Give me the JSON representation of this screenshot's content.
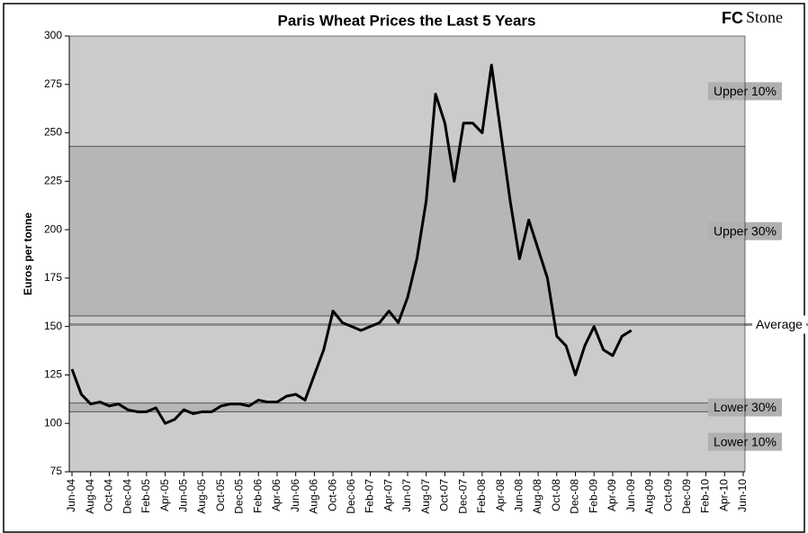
{
  "chart_data": {
    "type": "line",
    "title": "Paris Wheat Prices the Last 5 Years",
    "logo": {
      "bold": "FC",
      "text": "Stone"
    },
    "y_label": "Euros per tonne",
    "ylim": [
      75,
      300
    ],
    "yticks": [
      75,
      100,
      125,
      150,
      175,
      200,
      225,
      250,
      275,
      300
    ],
    "xlim": [
      "2004-06",
      "2010-06"
    ],
    "xticks": [
      {
        "value": "2004-06",
        "label": "Jun-04"
      },
      {
        "value": "2004-08",
        "label": "Aug-04"
      },
      {
        "value": "2004-10",
        "label": "Oct-04"
      },
      {
        "value": "2004-12",
        "label": "Dec-04"
      },
      {
        "value": "2005-02",
        "label": "Feb-05"
      },
      {
        "value": "2005-04",
        "label": "Apr-05"
      },
      {
        "value": "2005-06",
        "label": "Jun-05"
      },
      {
        "value": "2005-08",
        "label": "Aug-05"
      },
      {
        "value": "2005-10",
        "label": "Oct-05"
      },
      {
        "value": "2005-12",
        "label": "Dec-05"
      },
      {
        "value": "2006-02",
        "label": "Feb-06"
      },
      {
        "value": "2006-04",
        "label": "Apr-06"
      },
      {
        "value": "2006-06",
        "label": "Jun-06"
      },
      {
        "value": "2006-08",
        "label": "Aug-06"
      },
      {
        "value": "2006-10",
        "label": "Oct-06"
      },
      {
        "value": "2006-12",
        "label": "Dec-06"
      },
      {
        "value": "2007-02",
        "label": "Feb-07"
      },
      {
        "value": "2007-04",
        "label": "Apr-07"
      },
      {
        "value": "2007-06",
        "label": "Jun-07"
      },
      {
        "value": "2007-08",
        "label": "Aug-07"
      },
      {
        "value": "2007-10",
        "label": "Oct-07"
      },
      {
        "value": "2007-12",
        "label": "Dec-07"
      },
      {
        "value": "2008-02",
        "label": "Feb-08"
      },
      {
        "value": "2008-04",
        "label": "Apr-08"
      },
      {
        "value": "2008-06",
        "label": "Jun-08"
      },
      {
        "value": "2008-08",
        "label": "Aug-08"
      },
      {
        "value": "2008-10",
        "label": "Oct-08"
      },
      {
        "value": "2008-12",
        "label": "Dec-08"
      },
      {
        "value": "2009-02",
        "label": "Feb-09"
      },
      {
        "value": "2009-04",
        "label": "Apr-09"
      },
      {
        "value": "2009-06",
        "label": "Jun-09"
      },
      {
        "value": "2009-08",
        "label": "Aug-09"
      },
      {
        "value": "2009-10",
        "label": "Oct-09"
      },
      {
        "value": "2009-12",
        "label": "Dec-09"
      },
      {
        "value": "2010-02",
        "label": "Feb-10"
      },
      {
        "value": "2010-04",
        "label": "Apr-10"
      },
      {
        "value": "2010-06",
        "label": "Jun-10"
      }
    ],
    "x": [
      "2004-06",
      "2004-07",
      "2004-08",
      "2004-09",
      "2004-10",
      "2004-11",
      "2004-12",
      "2005-01",
      "2005-02",
      "2005-03",
      "2005-04",
      "2005-05",
      "2005-06",
      "2005-07",
      "2005-08",
      "2005-09",
      "2005-10",
      "2005-11",
      "2005-12",
      "2006-01",
      "2006-02",
      "2006-03",
      "2006-04",
      "2006-05",
      "2006-06",
      "2006-07",
      "2006-08",
      "2006-09",
      "2006-10",
      "2006-11",
      "2006-12",
      "2007-01",
      "2007-02",
      "2007-03",
      "2007-04",
      "2007-05",
      "2007-06",
      "2007-07",
      "2007-08",
      "2007-09",
      "2007-10",
      "2007-11",
      "2007-12",
      "2008-01",
      "2008-02",
      "2008-03",
      "2008-04",
      "2008-05",
      "2008-06",
      "2008-07",
      "2008-08",
      "2008-09",
      "2008-10",
      "2008-11",
      "2008-12",
      "2009-01",
      "2009-02",
      "2009-03",
      "2009-04",
      "2009-05",
      "2009-06"
    ],
    "series": [
      {
        "name": "Paris Wheat",
        "color": "#000000",
        "values": [
          128,
          115,
          110,
          111,
          109,
          110,
          107,
          106,
          106,
          108,
          100,
          102,
          107,
          105,
          106,
          106,
          109,
          110,
          110,
          109,
          112,
          111,
          111,
          114,
          115,
          112,
          125,
          138,
          158,
          152,
          150,
          148,
          150,
          152,
          158,
          152,
          165,
          185,
          215,
          270,
          255,
          225,
          255,
          255,
          250,
          285,
          250,
          215,
          185,
          205,
          190,
          175,
          145,
          140,
          125,
          140,
          150,
          138,
          135,
          145,
          148
        ]
      }
    ],
    "levels": [
      {
        "name": "Upper 10%",
        "value": 243
      },
      {
        "name": "Upper 30%",
        "value": 155.5
      },
      {
        "name": "Average",
        "value": 151
      },
      {
        "name": "Lower 30%",
        "value": 110.5
      },
      {
        "name": "Lower 10%",
        "value": 106
      }
    ],
    "background_color": "#cbcbcb",
    "band_color": "#b6b6b6"
  }
}
